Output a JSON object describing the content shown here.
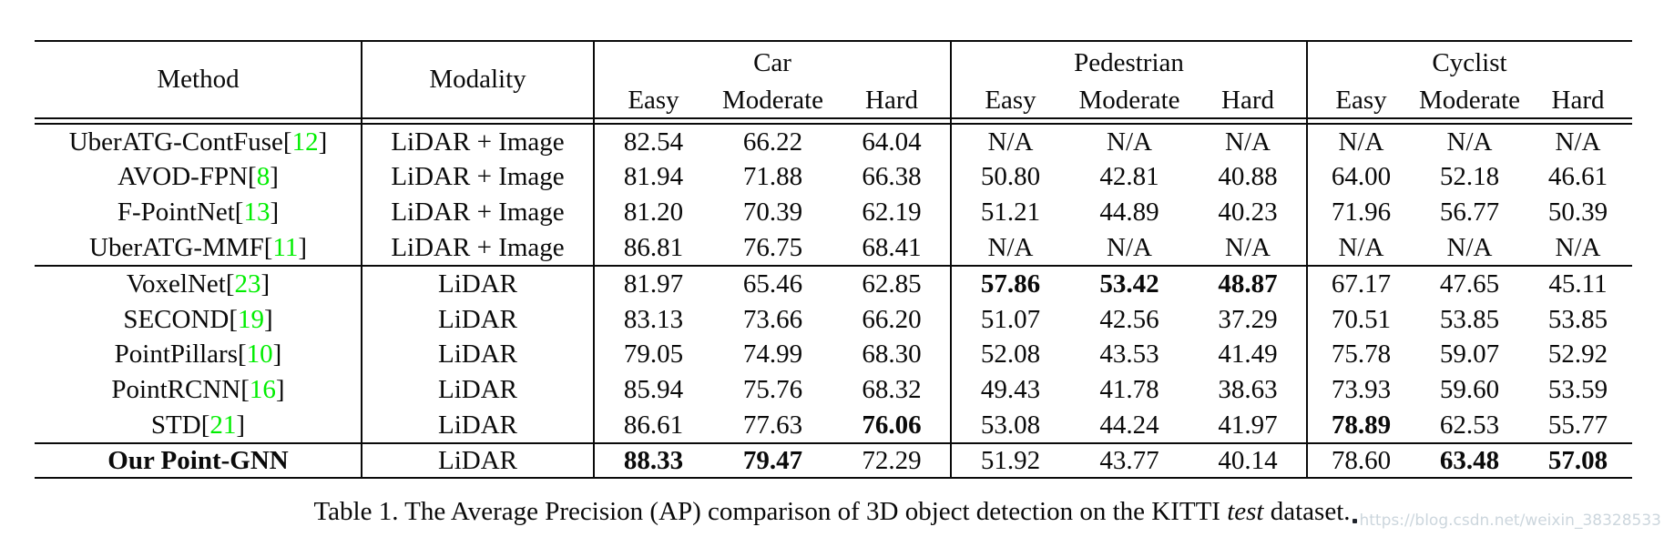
{
  "colors": {
    "citation_green": "#00ee00",
    "watermark_gray": "#ccd6dd",
    "rule_black": "#0a0a0a"
  },
  "table": {
    "header": {
      "method": "Method",
      "modality": "Modality",
      "groups": [
        {
          "label": "Car"
        },
        {
          "label": "Pedestrian"
        },
        {
          "label": "Cyclist"
        }
      ],
      "sub_columns": [
        "Easy",
        "Moderate",
        "Hard"
      ]
    },
    "row_groups": [
      {
        "rows": [
          {
            "method": "UberATG-ContFuse",
            "citation": "12",
            "modality": "LiDAR + Image",
            "values": [
              "82.54",
              "66.22",
              "64.04",
              "N/A",
              "N/A",
              "N/A",
              "N/A",
              "N/A",
              "N/A"
            ],
            "bold": [],
            "method_bold": false
          },
          {
            "method": "AVOD-FPN",
            "citation": "8",
            "modality": "LiDAR + Image",
            "values": [
              "81.94",
              "71.88",
              "66.38",
              "50.80",
              "42.81",
              "40.88",
              "64.00",
              "52.18",
              "46.61"
            ],
            "bold": [],
            "method_bold": false
          },
          {
            "method": "F-PointNet",
            "citation": "13",
            "modality": "LiDAR + Image",
            "values": [
              "81.20",
              "70.39",
              "62.19",
              "51.21",
              "44.89",
              "40.23",
              "71.96",
              "56.77",
              "50.39"
            ],
            "bold": [],
            "method_bold": false
          },
          {
            "method": "UberATG-MMF",
            "citation": "11",
            "modality": "LiDAR + Image",
            "values": [
              "86.81",
              "76.75",
              "68.41",
              "N/A",
              "N/A",
              "N/A",
              "N/A",
              "N/A",
              "N/A"
            ],
            "bold": [],
            "method_bold": false
          }
        ]
      },
      {
        "rows": [
          {
            "method": "VoxelNet",
            "citation": "23",
            "modality": "LiDAR",
            "values": [
              "81.97",
              "65.46",
              "62.85",
              "57.86",
              "53.42",
              "48.87",
              "67.17",
              "47.65",
              "45.11"
            ],
            "bold": [
              3,
              4,
              5
            ],
            "method_bold": false
          },
          {
            "method": "SECOND",
            "citation": "19",
            "modality": "LiDAR",
            "values": [
              "83.13",
              "73.66",
              "66.20",
              "51.07",
              "42.56",
              "37.29",
              "70.51",
              "53.85",
              "53.85"
            ],
            "bold": [],
            "method_bold": false
          },
          {
            "method": "PointPillars",
            "citation": "10",
            "modality": "LiDAR",
            "values": [
              "79.05",
              "74.99",
              "68.30",
              "52.08",
              "43.53",
              "41.49",
              "75.78",
              "59.07",
              "52.92"
            ],
            "bold": [],
            "method_bold": false
          },
          {
            "method": "PointRCNN",
            "citation": "16",
            "modality": "LiDAR",
            "values": [
              "85.94",
              "75.76",
              "68.32",
              "49.43",
              "41.78",
              "38.63",
              "73.93",
              "59.60",
              "53.59"
            ],
            "bold": [],
            "method_bold": false
          },
          {
            "method": "STD",
            "citation": "21",
            "modality": "LiDAR",
            "values": [
              "86.61",
              "77.63",
              "76.06",
              "53.08",
              "44.24",
              "41.97",
              "78.89",
              "62.53",
              "55.77"
            ],
            "bold": [
              2,
              6
            ],
            "method_bold": false
          }
        ]
      },
      {
        "rows": [
          {
            "method": "Our Point-GNN",
            "citation": null,
            "modality": "LiDAR",
            "values": [
              "88.33",
              "79.47",
              "72.29",
              "51.92",
              "43.77",
              "40.14",
              "78.60",
              "63.48",
              "57.08"
            ],
            "bold": [
              0,
              1,
              7,
              8
            ],
            "method_bold": true
          }
        ]
      }
    ]
  },
  "caption": {
    "prefix": "Table 1. The Average Precision (AP) comparison of 3D object detection on the KITTI ",
    "italic": "test",
    "suffix": " dataset."
  },
  "watermark": {
    "text": "https://blog.csdn.net/weixin_38328533"
  }
}
